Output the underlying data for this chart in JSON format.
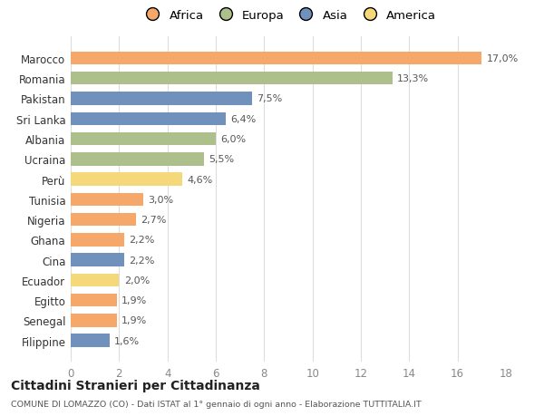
{
  "countries": [
    "Filippine",
    "Senegal",
    "Egitto",
    "Ecuador",
    "Cina",
    "Ghana",
    "Nigeria",
    "Tunisia",
    "Perù",
    "Ucraina",
    "Albania",
    "Sri Lanka",
    "Pakistan",
    "Romania",
    "Marocco"
  ],
  "values": [
    1.6,
    1.9,
    1.9,
    2.0,
    2.2,
    2.2,
    2.7,
    3.0,
    4.6,
    5.5,
    6.0,
    6.4,
    7.5,
    13.3,
    17.0
  ],
  "labels": [
    "1,6%",
    "1,9%",
    "1,9%",
    "2,0%",
    "2,2%",
    "2,2%",
    "2,7%",
    "3,0%",
    "4,6%",
    "5,5%",
    "6,0%",
    "6,4%",
    "7,5%",
    "13,3%",
    "17,0%"
  ],
  "continents": [
    "Asia",
    "Africa",
    "Africa",
    "America",
    "Asia",
    "Africa",
    "Africa",
    "Africa",
    "America",
    "Europa",
    "Europa",
    "Asia",
    "Asia",
    "Europa",
    "Africa"
  ],
  "continent_colors": {
    "Africa": "#F5A86A",
    "Europa": "#ADBF8A",
    "Asia": "#7091BB",
    "America": "#F5D87A"
  },
  "legend_order": [
    "Africa",
    "Europa",
    "Asia",
    "America"
  ],
  "legend_colors": [
    "#F5A86A",
    "#ADBF8A",
    "#7091BB",
    "#F5D87A"
  ],
  "title": "Cittadini Stranieri per Cittadinanza",
  "subtitle": "COMUNE DI LOMAZZO (CO) - Dati ISTAT al 1° gennaio di ogni anno - Elaborazione TUTTITALIA.IT",
  "xlim": [
    0,
    18
  ],
  "xticks": [
    0,
    2,
    4,
    6,
    8,
    10,
    12,
    14,
    16,
    18
  ],
  "background_color": "#ffffff",
  "grid_color": "#dddddd",
  "bar_height": 0.65
}
